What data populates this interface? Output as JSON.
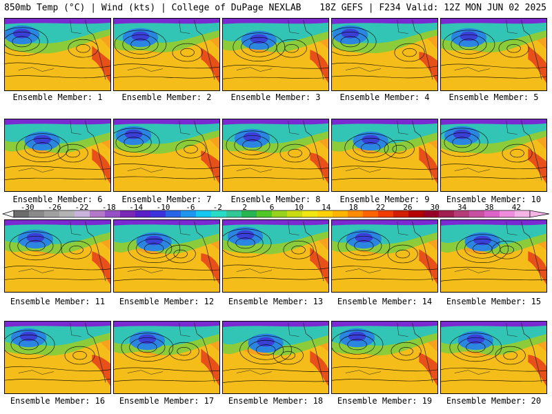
{
  "header": {
    "left": "850mb Temp (°C) | Wind (kts) | College of DuPage NEXLAB",
    "right": "18Z GEFS | F234 Valid: 12Z MON JUN 02 2025"
  },
  "member_label_prefix": "Ensemble Member:",
  "members": [
    1,
    2,
    3,
    4,
    5,
    6,
    7,
    8,
    9,
    10,
    11,
    12,
    13,
    14,
    15,
    16,
    17,
    18,
    19,
    20
  ],
  "colorbar": {
    "ticks": [
      "-30",
      "-26",
      "-22",
      "-18",
      "-14",
      "-10",
      "-6",
      "-2",
      "2",
      "6",
      "10",
      "14",
      "18",
      "22",
      "26",
      "30",
      "34",
      "38",
      "42"
    ],
    "colors": [
      "#6c6c6c",
      "#8a8a8a",
      "#a0a0a0",
      "#b4b4b4",
      "#c8b4dc",
      "#b478c8",
      "#9650c8",
      "#7828b4",
      "#5a1ec8",
      "#3c32dc",
      "#2864e6",
      "#1e96f0",
      "#14c8f0",
      "#28dcc8",
      "#32c896",
      "#28b450",
      "#50c828",
      "#96d21e",
      "#c8dc14",
      "#f0e614",
      "#ffd20a",
      "#ffb400",
      "#ff8c00",
      "#ff6400",
      "#f03c00",
      "#d21e00",
      "#b40000",
      "#960028",
      "#a01e50",
      "#b43c78",
      "#c850a0",
      "#dc64c8",
      "#f08cdc",
      "#f5b4e6"
    ]
  }
}
